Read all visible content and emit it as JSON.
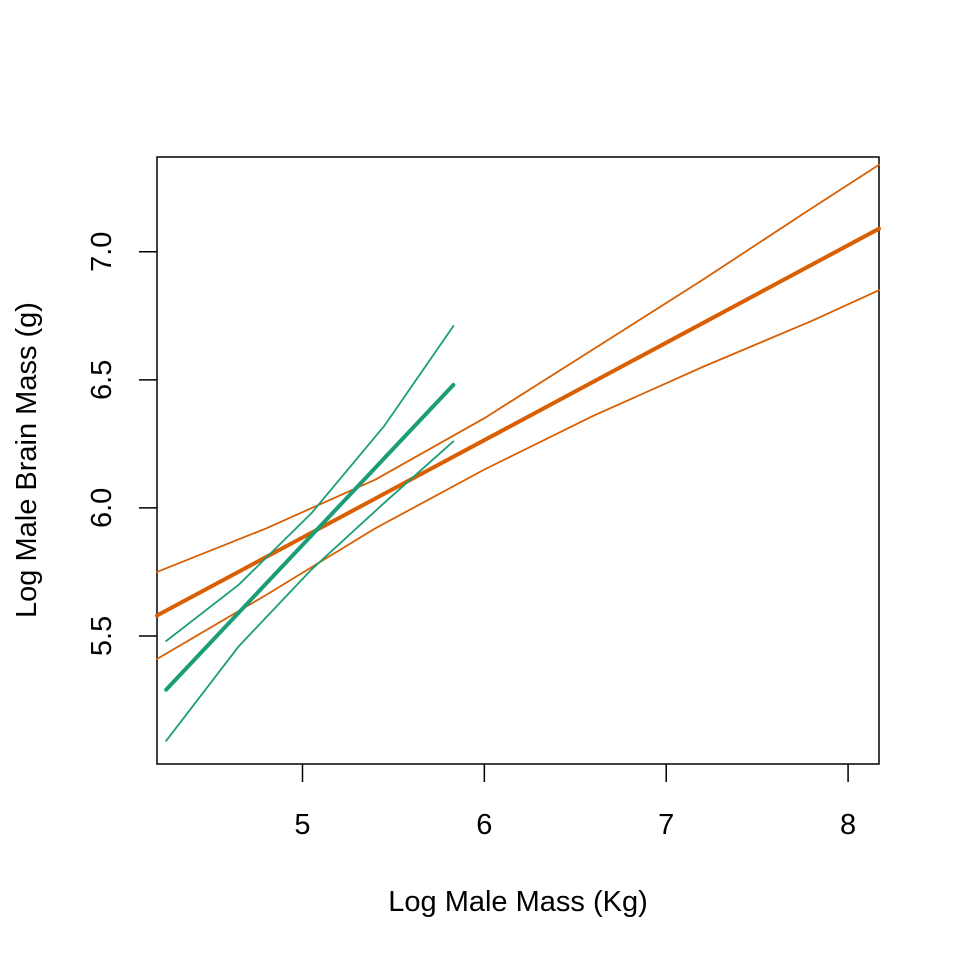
{
  "chart_data": {
    "type": "line",
    "title": "",
    "xlabel": "Log Male Mass (Kg)",
    "ylabel": "Log Male Brain Mass (g)",
    "xlim": [
      4.2,
      8.17
    ],
    "ylim": [
      5.0,
      7.37
    ],
    "xticks": [
      5,
      6,
      7,
      8
    ],
    "xtick_labels": [
      "5",
      "6",
      "7",
      "8"
    ],
    "yticks": [
      5.5,
      6.0,
      6.5,
      7.0
    ],
    "ytick_labels": [
      "5.5",
      "6.0",
      "6.5",
      "7.0"
    ],
    "grid": false,
    "legend": "none",
    "colors": {
      "orange": "#d95f02",
      "green": "#1b9e77",
      "axis": "#000000"
    },
    "series": [
      {
        "role": "orange-fit",
        "color": "#d95f02",
        "width": 4,
        "x": [
          4.2,
          8.17
        ],
        "y": [
          5.58,
          7.09
        ]
      },
      {
        "role": "orange-upper",
        "color": "#d95f02",
        "width": 1.8,
        "x": [
          4.2,
          4.8,
          5.4,
          6.0,
          6.6,
          7.2,
          7.8,
          8.17
        ],
        "y": [
          5.75,
          5.92,
          6.11,
          6.35,
          6.62,
          6.89,
          7.17,
          7.34
        ]
      },
      {
        "role": "orange-lower",
        "color": "#d95f02",
        "width": 1.8,
        "x": [
          4.2,
          4.8,
          5.4,
          6.0,
          6.6,
          7.2,
          7.8,
          8.17
        ],
        "y": [
          5.41,
          5.66,
          5.92,
          6.15,
          6.36,
          6.55,
          6.73,
          6.85
        ]
      },
      {
        "role": "green-fit",
        "color": "#1b9e77",
        "width": 4,
        "x": [
          4.25,
          5.83
        ],
        "y": [
          5.29,
          6.48
        ]
      },
      {
        "role": "green-upper",
        "color": "#1b9e77",
        "width": 1.8,
        "x": [
          4.25,
          4.65,
          5.05,
          5.45,
          5.83
        ],
        "y": [
          5.48,
          5.7,
          5.98,
          6.32,
          6.71
        ]
      },
      {
        "role": "green-lower",
        "color": "#1b9e77",
        "width": 1.8,
        "x": [
          4.25,
          4.65,
          5.05,
          5.45,
          5.83
        ],
        "y": [
          5.09,
          5.46,
          5.76,
          6.02,
          6.26
        ]
      }
    ]
  }
}
